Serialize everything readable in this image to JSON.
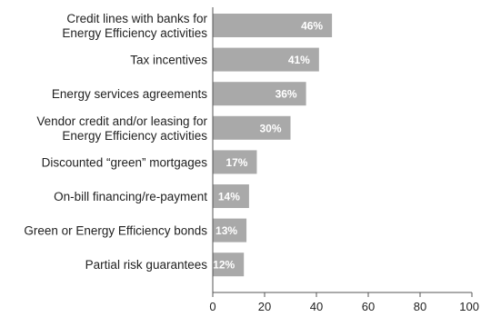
{
  "chart_data": {
    "type": "bar",
    "orientation": "horizontal",
    "categories": [
      [
        "Credit lines with banks for",
        "Energy Efficiency activities"
      ],
      [
        "Tax incentives"
      ],
      [
        "Energy services agreements"
      ],
      [
        "Vendor credit and/or leasing for",
        "Energy Efficiency activities"
      ],
      [
        "Discounted “green” mortgages"
      ],
      [
        "On-bill financing/re-payment"
      ],
      [
        "Green or Energy Efficiency bonds"
      ],
      [
        "Partial risk guarantees"
      ]
    ],
    "values": [
      46,
      41,
      36,
      30,
      17,
      14,
      13,
      12
    ],
    "value_labels": [
      "46%",
      "41%",
      "36%",
      "30%",
      "17%",
      "14%",
      "13%",
      "12%"
    ],
    "xlim": [
      0,
      100
    ],
    "x_ticks": [
      "0",
      "20",
      "40",
      "60",
      "80",
      "100"
    ],
    "x_tick_values": [
      0,
      20,
      40,
      60,
      80,
      100
    ],
    "title": "",
    "xlabel": "",
    "ylabel": "",
    "grid": false,
    "bar_color": "#a9a9a9",
    "label_color": "#ffffff",
    "axis_color": "#555555"
  }
}
